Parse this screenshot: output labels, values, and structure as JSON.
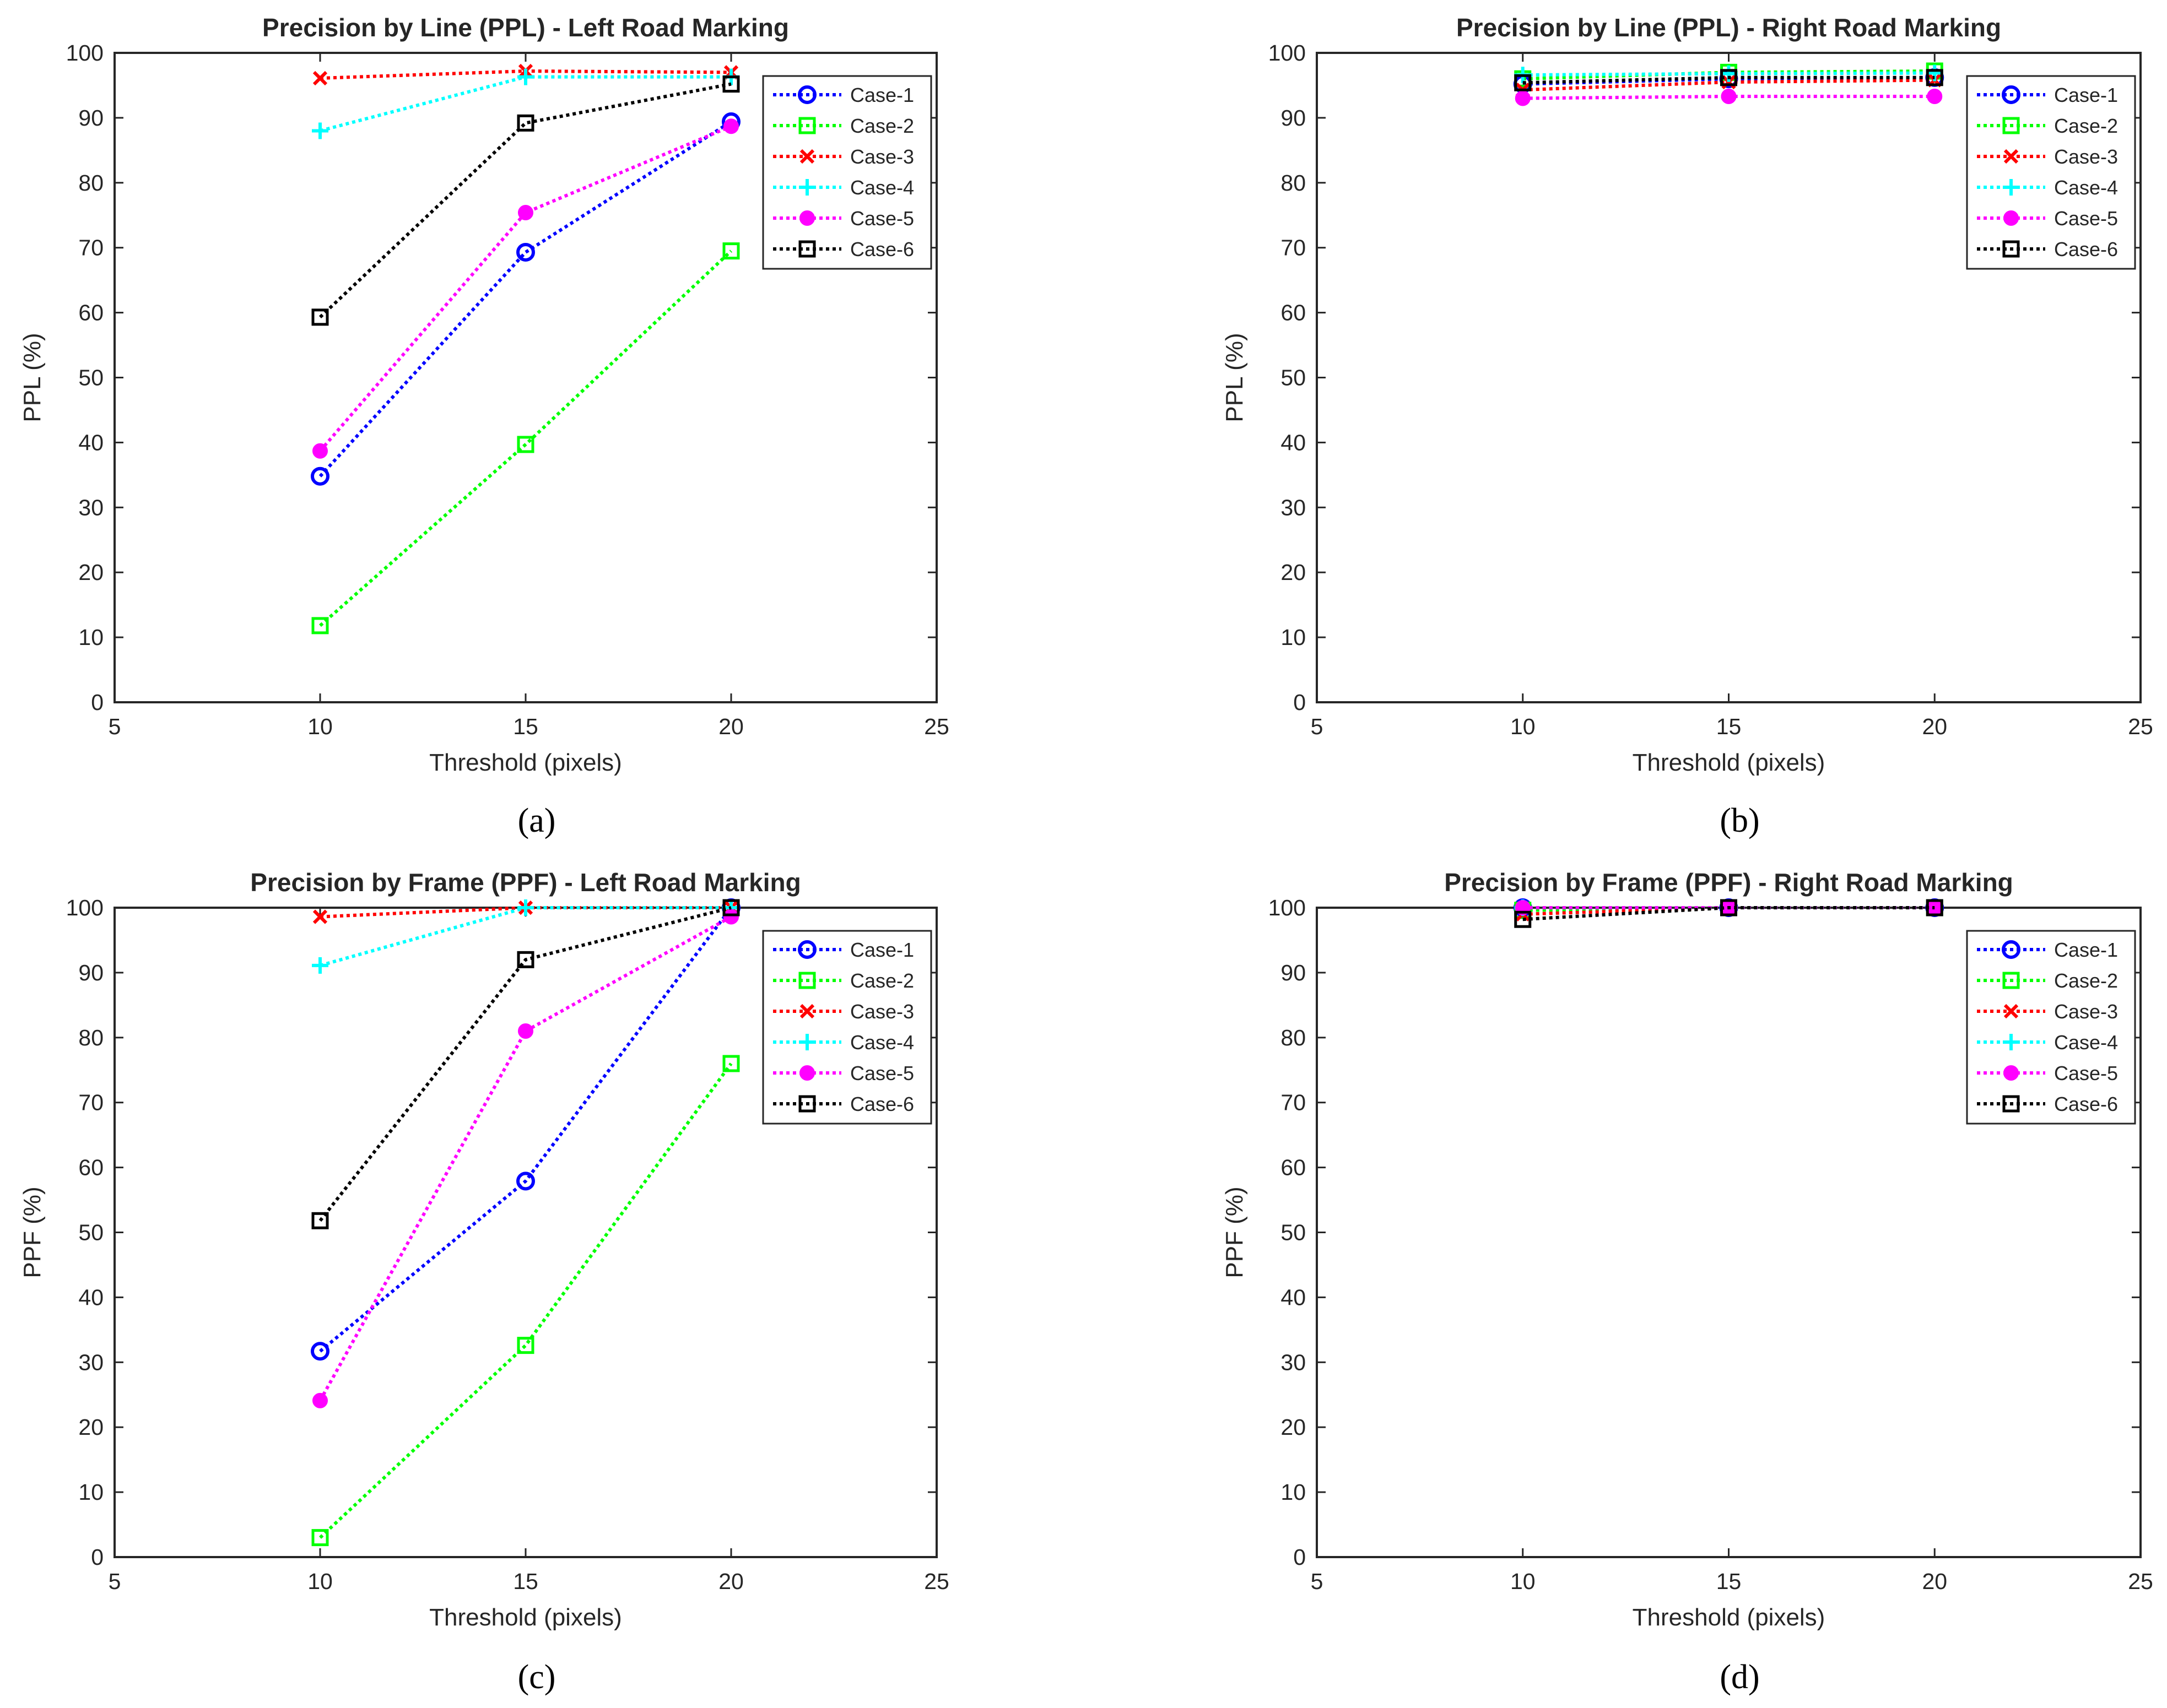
{
  "chart_data": [
    {
      "type": "line",
      "panel": "a",
      "caption": "(a)",
      "title": "Precision by Line (PPL) - Left Road Marking",
      "xlabel": "Threshold (pixels)",
      "ylabel": "PPL (%)",
      "xlim": [
        5,
        25
      ],
      "ylim": [
        0,
        100
      ],
      "xticks": [
        5,
        10,
        15,
        20,
        25
      ],
      "yticks": [
        0,
        10,
        20,
        30,
        40,
        50,
        60,
        70,
        80,
        90,
        100
      ],
      "x": [
        10,
        15,
        20
      ],
      "legend_position": "top-right",
      "series": [
        {
          "name": "Case-1",
          "color": "#0000ff",
          "marker": "circle",
          "values": [
            34.8,
            69.3,
            89.4
          ]
        },
        {
          "name": "Case-2",
          "color": "#00ff00",
          "marker": "square",
          "values": [
            11.8,
            39.7,
            69.5
          ]
        },
        {
          "name": "Case-3",
          "color": "#ff0000",
          "marker": "x",
          "values": [
            96.1,
            97.2,
            97.0
          ]
        },
        {
          "name": "Case-4",
          "color": "#00ffff",
          "marker": "plus",
          "values": [
            88.0,
            96.3,
            96.3
          ]
        },
        {
          "name": "Case-5",
          "color": "#ff00ff",
          "marker": "dot",
          "values": [
            38.7,
            75.4,
            88.7
          ]
        },
        {
          "name": "Case-6",
          "color": "#000000",
          "marker": "square",
          "values": [
            59.3,
            89.2,
            95.2
          ]
        }
      ]
    },
    {
      "type": "line",
      "panel": "b",
      "caption": "(b)",
      "title": "Precision by Line (PPL) - Right Road Marking",
      "xlabel": "Threshold (pixels)",
      "ylabel": "PPL (%)",
      "xlim": [
        5,
        25
      ],
      "ylim": [
        0,
        100
      ],
      "xticks": [
        5,
        10,
        15,
        20,
        25
      ],
      "yticks": [
        0,
        10,
        20,
        30,
        40,
        50,
        60,
        70,
        80,
        90,
        100
      ],
      "x": [
        10,
        15,
        20
      ],
      "legend_position": "top-right",
      "series": [
        {
          "name": "Case-1",
          "color": "#0000ff",
          "marker": "circle",
          "values": [
            95.2,
            96.0,
            96.2
          ]
        },
        {
          "name": "Case-2",
          "color": "#00ff00",
          "marker": "square",
          "values": [
            96.0,
            97.0,
            97.2
          ]
        },
        {
          "name": "Case-3",
          "color": "#ff0000",
          "marker": "x",
          "values": [
            94.3,
            95.5,
            95.8
          ]
        },
        {
          "name": "Case-4",
          "color": "#00ffff",
          "marker": "plus",
          "values": [
            96.6,
            96.8,
            96.9
          ]
        },
        {
          "name": "Case-5",
          "color": "#ff00ff",
          "marker": "dot",
          "values": [
            93.0,
            93.3,
            93.3
          ]
        },
        {
          "name": "Case-6",
          "color": "#000000",
          "marker": "square",
          "values": [
            95.4,
            96.2,
            96.2
          ]
        }
      ]
    },
    {
      "type": "line",
      "panel": "c",
      "caption": "(c)",
      "title": "Precision by Frame (PPF) - Left Road Marking",
      "xlabel": "Threshold (pixels)",
      "ylabel": "PPF (%)",
      "xlim": [
        5,
        25
      ],
      "ylim": [
        0,
        100
      ],
      "xticks": [
        5,
        10,
        15,
        20,
        25
      ],
      "yticks": [
        0,
        10,
        20,
        30,
        40,
        50,
        60,
        70,
        80,
        90,
        100
      ],
      "x": [
        10,
        15,
        20
      ],
      "legend_position": "top-right",
      "series": [
        {
          "name": "Case-1",
          "color": "#0000ff",
          "marker": "circle",
          "values": [
            31.7,
            57.9,
            100
          ]
        },
        {
          "name": "Case-2",
          "color": "#00ff00",
          "marker": "square",
          "values": [
            3.0,
            32.6,
            76.0
          ]
        },
        {
          "name": "Case-3",
          "color": "#ff0000",
          "marker": "x",
          "values": [
            98.6,
            100,
            100
          ]
        },
        {
          "name": "Case-4",
          "color": "#00ffff",
          "marker": "plus",
          "values": [
            91.1,
            100,
            100
          ]
        },
        {
          "name": "Case-5",
          "color": "#ff00ff",
          "marker": "dot",
          "values": [
            24.1,
            81.0,
            98.6
          ]
        },
        {
          "name": "Case-6",
          "color": "#000000",
          "marker": "square",
          "values": [
            51.8,
            92.0,
            100
          ]
        }
      ]
    },
    {
      "type": "line",
      "panel": "d",
      "caption": "(d)",
      "title": "Precision by Frame (PPF) - Right Road Marking",
      "xlabel": "Threshold (pixels)",
      "ylabel": "PPF (%)",
      "xlim": [
        5,
        25
      ],
      "ylim": [
        0,
        100
      ],
      "xticks": [
        5,
        10,
        15,
        20,
        25
      ],
      "yticks": [
        0,
        10,
        20,
        30,
        40,
        50,
        60,
        70,
        80,
        90,
        100
      ],
      "x": [
        10,
        15,
        20
      ],
      "legend_position": "top-right",
      "series": [
        {
          "name": "Case-1",
          "color": "#0000ff",
          "marker": "circle",
          "values": [
            100,
            100,
            100
          ]
        },
        {
          "name": "Case-2",
          "color": "#00ff00",
          "marker": "square",
          "values": [
            99.6,
            100,
            100
          ]
        },
        {
          "name": "Case-3",
          "color": "#ff0000",
          "marker": "x",
          "values": [
            99.0,
            100,
            100
          ]
        },
        {
          "name": "Case-4",
          "color": "#00ffff",
          "marker": "plus",
          "values": [
            100,
            100,
            100
          ]
        },
        {
          "name": "Case-5",
          "color": "#ff00ff",
          "marker": "dot",
          "values": [
            100,
            100,
            100
          ]
        },
        {
          "name": "Case-6",
          "color": "#000000",
          "marker": "square",
          "values": [
            98.2,
            100,
            100
          ]
        }
      ]
    }
  ]
}
